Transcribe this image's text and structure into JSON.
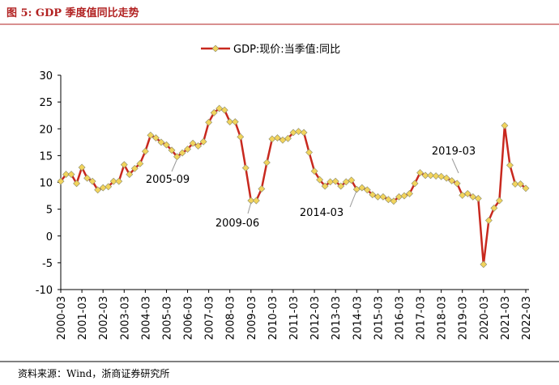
{
  "title": "图 5: GDP 季度值同比走势",
  "source": "资料来源：Wind，浙商证券研究所",
  "chart_data": {
    "type": "line",
    "categories": [
      "2000-03",
      null,
      null,
      null,
      "2001-03",
      null,
      null,
      null,
      "2002-03",
      null,
      null,
      null,
      "2003-03",
      null,
      null,
      null,
      "2004-03",
      null,
      null,
      null,
      "2005-03",
      null,
      null,
      null,
      "2006-03",
      null,
      null,
      null,
      "2007-03",
      null,
      null,
      null,
      "2008-03",
      null,
      null,
      null,
      "2009-03",
      null,
      null,
      null,
      "2010-03",
      null,
      null,
      null,
      "2011-03",
      null,
      null,
      null,
      "2012-03",
      null,
      null,
      null,
      "2013-03",
      null,
      null,
      null,
      "2014-03",
      null,
      null,
      null,
      "2015-03",
      null,
      null,
      null,
      "2016-03",
      null,
      null,
      null,
      "2017-03",
      null,
      null,
      null,
      "2018-03",
      null,
      null,
      null,
      "2019-03",
      null,
      null,
      null,
      "2020-03",
      null,
      null,
      null,
      "2021-03",
      null,
      null,
      null,
      "2022-03"
    ],
    "series": [
      {
        "name": "GDP:现价:当季值:同比",
        "color": "#c8281e",
        "marker_color": "#f2d45c",
        "values": [
          10.2,
          11.5,
          11.5,
          9.8,
          12.8,
          10.8,
          10.2,
          8.6,
          9.0,
          9.2,
          10.2,
          10.2,
          13.3,
          11.5,
          12.6,
          13.5,
          15.8,
          18.8,
          18.3,
          17.5,
          17.0,
          16.0,
          14.8,
          15.5,
          16.2,
          17.3,
          16.8,
          17.6,
          21.2,
          23.0,
          23.8,
          23.5,
          21.3,
          21.3,
          18.5,
          12.7,
          6.6,
          6.6,
          8.8,
          13.7,
          18.1,
          18.3,
          17.9,
          18.2,
          19.3,
          19.5,
          19.3,
          15.6,
          12.1,
          10.5,
          9.3,
          10.1,
          10.2,
          9.3,
          10.1,
          10.4,
          8.7,
          9.0,
          8.6,
          7.7,
          7.3,
          7.3,
          6.8,
          6.5,
          7.3,
          7.5,
          7.9,
          9.8,
          11.8,
          11.3,
          11.3,
          11.2,
          11.1,
          10.8,
          10.3,
          9.8,
          7.6,
          7.9,
          7.3,
          7.0,
          -5.3,
          2.9,
          5.2,
          6.6,
          20.6,
          13.2,
          9.7,
          9.7,
          8.9
        ]
      }
    ],
    "ylim": [
      -10,
      30
    ],
    "yticks": [
      -10,
      -5,
      0,
      5,
      10,
      15,
      20,
      25,
      30
    ],
    "annotations": [
      "2005-09",
      "2009-06",
      "2014-03",
      "2019-03"
    ],
    "legend": "top"
  }
}
